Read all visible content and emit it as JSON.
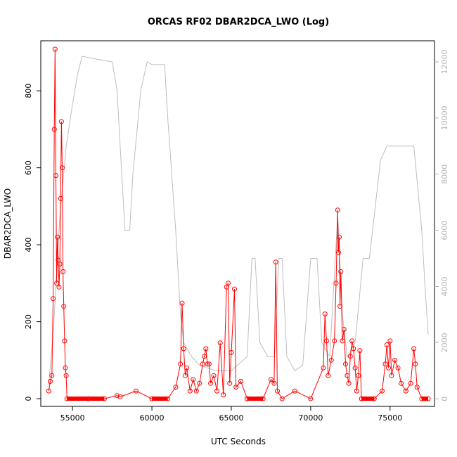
{
  "chart_data": {
    "type": "line",
    "title": "ORCAS RF02 DBAR2DCA_LWO (Log)",
    "xlabel": "UTC Seconds",
    "ylabel": "DBAR2DCA_LWO",
    "xlim": [
      53000,
      77800
    ],
    "ylim": [
      -20,
      930
    ],
    "y2lim": [
      -270,
      12750
    ],
    "x_ticks": [
      "55000",
      "60000",
      "65000",
      "70000",
      "75000"
    ],
    "y_ticks": [
      "0",
      "200",
      "400",
      "600",
      "800"
    ],
    "y2_ticks": [
      "0",
      "2000",
      "4000",
      "6000",
      "8000",
      "10000",
      "12000"
    ],
    "legend": "none",
    "grid": false,
    "colors": {
      "series": "#ff0000",
      "altitude": "#bebebe",
      "right_axis": "#b3b3b3"
    },
    "series": [
      {
        "values": [
          [
            53500,
            20
          ],
          [
            53600,
            45
          ],
          [
            53700,
            60
          ],
          [
            53780,
            260
          ],
          [
            53850,
            700
          ],
          [
            53900,
            908
          ],
          [
            53950,
            580
          ],
          [
            54000,
            300
          ],
          [
            54050,
            420
          ],
          [
            54100,
            360
          ],
          [
            54150,
            290
          ],
          [
            54200,
            350
          ],
          [
            54250,
            520
          ],
          [
            54300,
            720
          ],
          [
            54350,
            600
          ],
          [
            54400,
            330
          ],
          [
            54450,
            240
          ],
          [
            54500,
            150
          ],
          [
            54550,
            80
          ],
          [
            54600,
            60
          ],
          [
            54650,
            0
          ],
          [
            56000,
            0
          ],
          [
            57000,
            0
          ],
          [
            57800,
            8
          ],
          [
            58000,
            5
          ],
          [
            59000,
            20
          ],
          [
            60000,
            0
          ],
          [
            61000,
            0
          ],
          [
            61500,
            30
          ],
          [
            61800,
            90
          ],
          [
            61900,
            248
          ],
          [
            62000,
            130
          ],
          [
            62100,
            60
          ],
          [
            62200,
            80
          ],
          [
            62400,
            20
          ],
          [
            62600,
            50
          ],
          [
            62800,
            20
          ],
          [
            63000,
            40
          ],
          [
            63200,
            90
          ],
          [
            63300,
            110
          ],
          [
            63400,
            130
          ],
          [
            63500,
            90
          ],
          [
            63600,
            90
          ],
          [
            63700,
            40
          ],
          [
            63900,
            60
          ],
          [
            64100,
            20
          ],
          [
            64300,
            145
          ],
          [
            64500,
            10
          ],
          [
            64700,
            290
          ],
          [
            64800,
            300
          ],
          [
            64900,
            40
          ],
          [
            65000,
            120
          ],
          [
            65200,
            285
          ],
          [
            65300,
            30
          ],
          [
            65600,
            45
          ],
          [
            66000,
            0
          ],
          [
            67000,
            0
          ],
          [
            67500,
            50
          ],
          [
            67700,
            40
          ],
          [
            67800,
            355
          ],
          [
            67900,
            20
          ],
          [
            68200,
            0
          ],
          [
            69000,
            20
          ],
          [
            70000,
            0
          ],
          [
            70800,
            80
          ],
          [
            70900,
            220
          ],
          [
            71000,
            150
          ],
          [
            71100,
            60
          ],
          [
            71300,
            100
          ],
          [
            71500,
            150
          ],
          [
            71600,
            300
          ],
          [
            71700,
            490
          ],
          [
            71750,
            380
          ],
          [
            71800,
            420
          ],
          [
            71850,
            240
          ],
          [
            71900,
            330
          ],
          [
            72000,
            150
          ],
          [
            72100,
            180
          ],
          [
            72200,
            90
          ],
          [
            72300,
            60
          ],
          [
            72400,
            40
          ],
          [
            72500,
            110
          ],
          [
            72600,
            150
          ],
          [
            72700,
            130
          ],
          [
            72800,
            80
          ],
          [
            72900,
            20
          ],
          [
            73000,
            60
          ],
          [
            73100,
            125
          ],
          [
            73200,
            0
          ],
          [
            74000,
            0
          ],
          [
            74500,
            20
          ],
          [
            74700,
            90
          ],
          [
            74800,
            140
          ],
          [
            74900,
            80
          ],
          [
            75000,
            150
          ],
          [
            75100,
            60
          ],
          [
            75300,
            100
          ],
          [
            75500,
            80
          ],
          [
            75700,
            40
          ],
          [
            76000,
            20
          ],
          [
            76300,
            40
          ],
          [
            76500,
            130
          ],
          [
            76600,
            90
          ],
          [
            76700,
            30
          ],
          [
            77000,
            0
          ],
          [
            77400,
            0
          ]
        ]
      }
    ],
    "altitude_series": {
      "values": [
        [
          53500,
          500
        ],
        [
          53800,
          2500
        ],
        [
          54200,
          6500
        ],
        [
          54600,
          9000
        ],
        [
          55000,
          10500
        ],
        [
          55300,
          11500
        ],
        [
          55600,
          12200
        ],
        [
          56500,
          12100
        ],
        [
          57500,
          12000
        ],
        [
          57800,
          11000
        ],
        [
          58100,
          8000
        ],
        [
          58300,
          6000
        ],
        [
          58600,
          6000
        ],
        [
          58800,
          8000
        ],
        [
          59300,
          11000
        ],
        [
          59700,
          12000
        ],
        [
          60000,
          11900
        ],
        [
          60800,
          11900
        ],
        [
          61000,
          10000
        ],
        [
          61500,
          6000
        ],
        [
          61800,
          3000
        ],
        [
          62000,
          2000
        ],
        [
          62500,
          1500
        ],
        [
          63000,
          1200
        ],
        [
          64000,
          1000
        ],
        [
          65000,
          1000
        ],
        [
          66000,
          1500
        ],
        [
          66300,
          5000
        ],
        [
          66500,
          5000
        ],
        [
          66800,
          2000
        ],
        [
          67300,
          1500
        ],
        [
          67700,
          1500
        ],
        [
          68000,
          5000
        ],
        [
          68200,
          5000
        ],
        [
          68500,
          1500
        ],
        [
          69000,
          1000
        ],
        [
          69500,
          1200
        ],
        [
          70000,
          5000
        ],
        [
          70400,
          5000
        ],
        [
          70700,
          2000
        ],
        [
          71200,
          1500
        ],
        [
          71700,
          6500
        ],
        [
          72000,
          3000
        ],
        [
          72300,
          1500
        ],
        [
          72800,
          2000
        ],
        [
          73300,
          5000
        ],
        [
          73700,
          5000
        ],
        [
          74000,
          6500
        ],
        [
          74400,
          8500
        ],
        [
          74800,
          9000
        ],
        [
          75500,
          9000
        ],
        [
          76000,
          9000
        ],
        [
          76500,
          9000
        ],
        [
          77000,
          6000
        ],
        [
          77200,
          4000
        ],
        [
          77400,
          2300
        ]
      ]
    }
  }
}
